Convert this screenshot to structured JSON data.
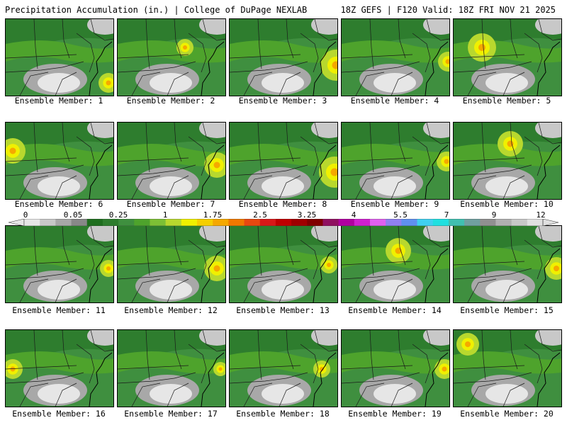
{
  "header": {
    "left": "Precipitation Accumulation (in.) | College of DuPage NEXLAB",
    "right": "18Z GEFS | F120 Valid: 18Z FRI NOV 21 2025"
  },
  "colors": {
    "scale": [
      "#e6e6e6",
      "#c8c8c8",
      "#a8a8a8",
      "#888888",
      "#1e6e1e",
      "#2e7d2e",
      "#3f8f3f",
      "#4ea32c",
      "#7cc035",
      "#b8d82e",
      "#f0f000",
      "#f5cf00",
      "#f5a800",
      "#f07800",
      "#e84810",
      "#d81818",
      "#c00000",
      "#a00000",
      "#800000",
      "#901060",
      "#b000a0",
      "#d020d0",
      "#e060f0",
      "#9080f0",
      "#6090f0",
      "#40d0f0",
      "#20e0e0",
      "#40c0b0",
      "#70a0a0",
      "#909090",
      "#b0b0b0",
      "#c8c8c8",
      "#e0e0e0"
    ]
  },
  "colorbar": {
    "labels": [
      "0",
      "0.05",
      "0.25",
      "1",
      "1.75",
      "2.5",
      "3.25",
      "4",
      "5.5",
      "7",
      "9",
      "12"
    ]
  },
  "members": [
    {
      "label": "Ensemble Member: 1"
    },
    {
      "label": "Ensemble Member: 2"
    },
    {
      "label": "Ensemble Member: 3"
    },
    {
      "label": "Ensemble Member: 4"
    },
    {
      "label": "Ensemble Member: 5"
    },
    {
      "label": "Ensemble Member: 6"
    },
    {
      "label": "Ensemble Member: 7"
    },
    {
      "label": "Ensemble Member: 8"
    },
    {
      "label": "Ensemble Member: 9"
    },
    {
      "label": "Ensemble Member: 10"
    },
    {
      "label": "Ensemble Member: 11"
    },
    {
      "label": "Ensemble Member: 12"
    },
    {
      "label": "Ensemble Member: 13"
    },
    {
      "label": "Ensemble Member: 14"
    },
    {
      "label": "Ensemble Member: 15"
    },
    {
      "label": "Ensemble Member: 16"
    },
    {
      "label": "Ensemble Member: 17"
    },
    {
      "label": "Ensemble Member: 18"
    },
    {
      "label": "Ensemble Member: 19"
    },
    {
      "label": "Ensemble Member: 20"
    }
  ]
}
